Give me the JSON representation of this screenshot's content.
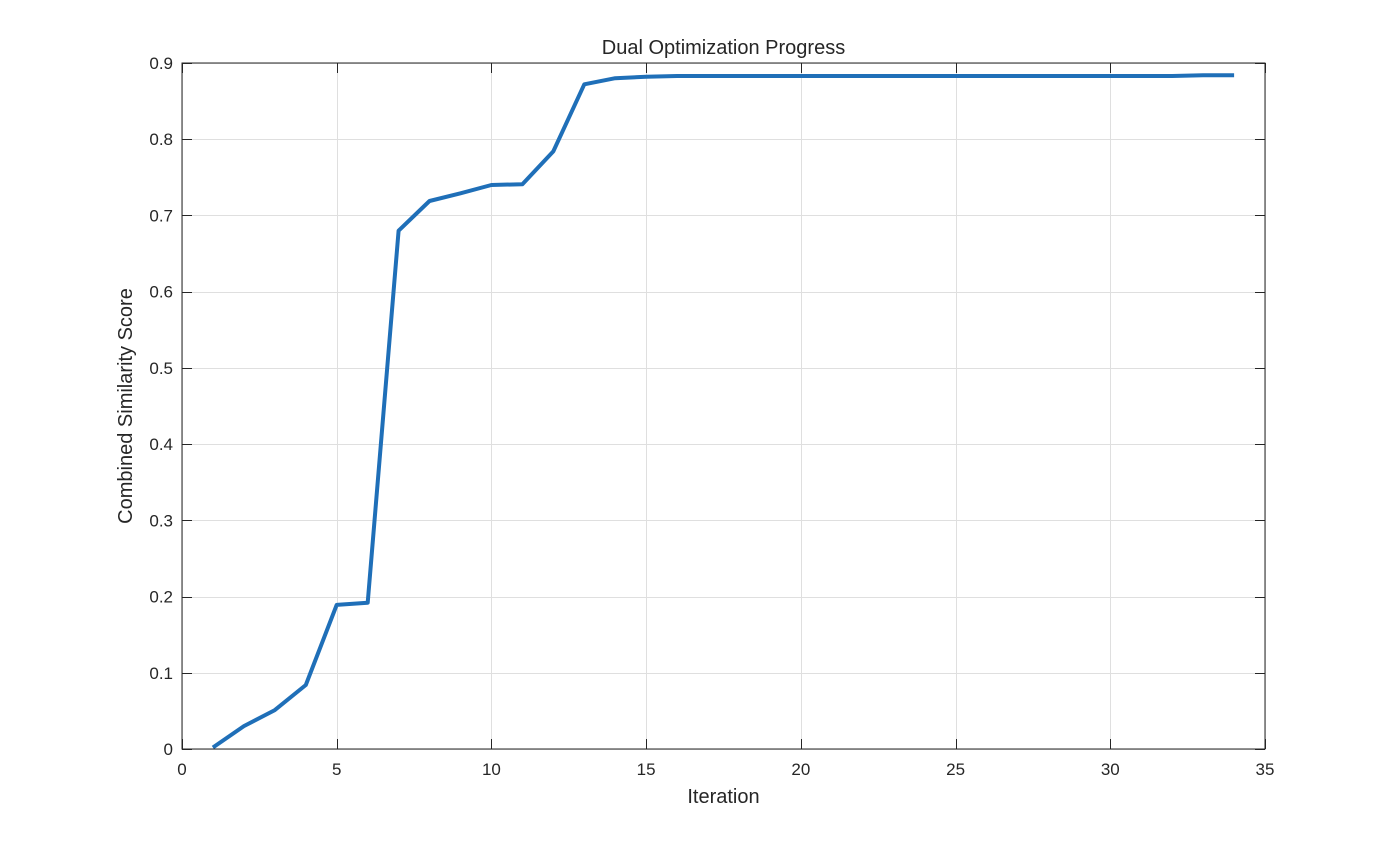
{
  "chart_data": {
    "type": "line",
    "title": "Dual Optimization Progress",
    "xlabel": "Iteration",
    "ylabel": "Combined Similarity Score",
    "xlim": [
      0,
      35
    ],
    "ylim": [
      0,
      0.9
    ],
    "xticks": [
      0,
      5,
      10,
      15,
      20,
      25,
      30,
      35
    ],
    "yticks": [
      0,
      0.1,
      0.2,
      0.3,
      0.4,
      0.5,
      0.6,
      0.7,
      0.8,
      0.9
    ],
    "xtick_labels": [
      "0",
      "5",
      "10",
      "15",
      "20",
      "25",
      "30",
      "35"
    ],
    "ytick_labels": [
      "0",
      "0.1",
      "0.2",
      "0.3",
      "0.4",
      "0.5",
      "0.6",
      "0.7",
      "0.8",
      "0.9"
    ],
    "grid": true,
    "series": [
      {
        "color": "#1f6fb8",
        "x": [
          1,
          2,
          3,
          4,
          5,
          6,
          7,
          8,
          9,
          10,
          11,
          12,
          13,
          14,
          15,
          16,
          17,
          18,
          19,
          20,
          21,
          22,
          23,
          24,
          25,
          26,
          27,
          28,
          29,
          30,
          31,
          32,
          33,
          34
        ],
        "y": [
          0.002,
          0.03,
          0.051,
          0.084,
          0.189,
          0.192,
          0.68,
          0.719,
          0.729,
          0.74,
          0.741,
          0.784,
          0.872,
          0.88,
          0.882,
          0.883,
          0.883,
          0.883,
          0.883,
          0.883,
          0.883,
          0.883,
          0.883,
          0.883,
          0.883,
          0.883,
          0.883,
          0.883,
          0.883,
          0.883,
          0.883,
          0.883,
          0.884,
          0.884
        ]
      }
    ]
  }
}
